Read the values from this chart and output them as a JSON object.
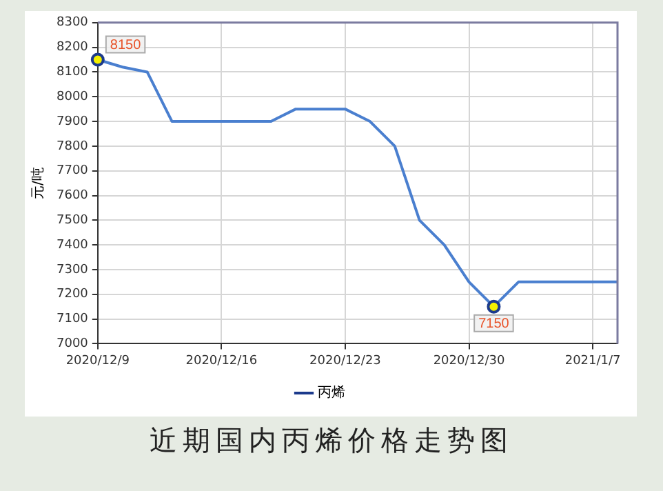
{
  "chart_data": {
    "type": "line",
    "title": "近期国内丙烯价格走势图",
    "ylabel": "元/吨",
    "categories": [
      "2020/12/9",
      null,
      null,
      null,
      null,
      "2020/12/16",
      null,
      null,
      null,
      null,
      "2020/12/23",
      null,
      null,
      null,
      null,
      "2020/12/30",
      null,
      null,
      null,
      null,
      "2021/1/7",
      null
    ],
    "series": [
      {
        "name": "丙烯",
        "color": "#4a7fcf",
        "values": [
          8150,
          8120,
          8100,
          7900,
          7900,
          7900,
          7900,
          7900,
          7950,
          7950,
          7950,
          7900,
          7800,
          7500,
          7400,
          7250,
          7150,
          7250,
          7250,
          7250,
          7250,
          7250
        ],
        "value_labels": [
          "8150",
          null,
          null,
          null,
          null,
          null,
          null,
          null,
          null,
          null,
          null,
          null,
          null,
          null,
          null,
          null,
          "7150",
          null,
          null,
          null,
          null,
          null
        ]
      }
    ],
    "ylim": [
      7000,
      8300
    ],
    "yticks": [
      7000,
      7100,
      7200,
      7300,
      7400,
      7500,
      7600,
      7700,
      7800,
      7900,
      8000,
      8100,
      8200,
      8300
    ],
    "grid": true,
    "legend": "bottom",
    "line_style": "solid"
  }
}
